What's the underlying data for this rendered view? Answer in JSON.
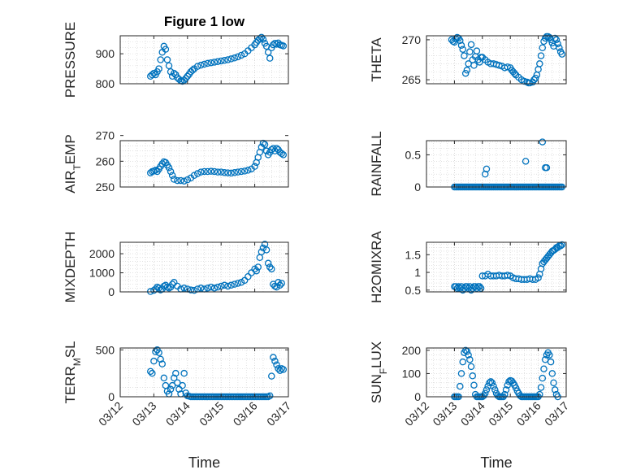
{
  "figure_title": "Figure 1 low",
  "colors": {
    "marker": "#0072BD",
    "axis": "#262626",
    "grid": "#cfcfcf"
  },
  "chart_data": [
    {
      "type": "scatter",
      "title": "Figure 1 low",
      "ylabel": "PRESSURE",
      "ylim": [
        800,
        960
      ],
      "yticks": [
        800,
        900
      ],
      "ytick_labels": [
        "800",
        "900"
      ],
      "x": [
        12.9,
        12.95,
        13.0,
        13.05,
        13.1,
        13.15,
        13.2,
        13.25,
        13.3,
        13.35,
        13.4,
        13.45,
        13.5,
        13.55,
        13.6,
        13.65,
        13.7,
        13.75,
        13.8,
        13.85,
        13.9,
        13.95,
        14.0,
        14.05,
        14.1,
        14.15,
        14.2,
        14.3,
        14.4,
        14.5,
        14.6,
        14.7,
        14.8,
        14.9,
        15.0,
        15.1,
        15.2,
        15.3,
        15.4,
        15.5,
        15.6,
        15.7,
        15.8,
        15.9,
        16.0,
        16.05,
        16.1,
        16.15,
        16.2,
        16.25,
        16.3,
        16.35,
        16.4,
        16.45,
        16.5,
        16.55,
        16.6,
        16.65,
        16.7,
        16.75,
        16.8,
        16.85
      ],
      "y": [
        825,
        830,
        835,
        830,
        840,
        850,
        880,
        905,
        925,
        915,
        880,
        860,
        840,
        825,
        835,
        830,
        820,
        815,
        810,
        808,
        812,
        818,
        825,
        832,
        840,
        845,
        850,
        858,
        862,
        865,
        868,
        870,
        872,
        874,
        876,
        878,
        880,
        883,
        886,
        890,
        895,
        900,
        910,
        920,
        930,
        938,
        945,
        950,
        955,
        948,
        935,
        925,
        905,
        885,
        920,
        930,
        935,
        932,
        936,
        930,
        928,
        926
      ]
    },
    {
      "type": "scatter",
      "ylabel": "THETA",
      "ylim": [
        264.5,
        270.5
      ],
      "yticks": [
        265,
        270
      ],
      "ytick_labels": [
        "265",
        "270"
      ],
      "x": [
        12.9,
        12.95,
        13.0,
        13.05,
        13.1,
        13.15,
        13.2,
        13.25,
        13.3,
        13.35,
        13.4,
        13.45,
        13.5,
        13.55,
        13.6,
        13.65,
        13.7,
        13.75,
        13.8,
        13.85,
        13.9,
        13.95,
        14.0,
        14.1,
        14.2,
        14.3,
        14.4,
        14.5,
        14.6,
        14.7,
        14.8,
        14.9,
        15.0,
        15.05,
        15.1,
        15.15,
        15.2,
        15.3,
        15.4,
        15.5,
        15.6,
        15.65,
        15.7,
        15.8,
        15.85,
        15.9,
        15.95,
        16.0,
        16.05,
        16.1,
        16.15,
        16.2,
        16.25,
        16.3,
        16.35,
        16.4,
        16.45,
        16.5,
        16.55,
        16.6,
        16.65,
        16.7,
        16.75,
        16.8,
        16.85
      ],
      "y": [
        270.0,
        269.8,
        269.7,
        270.1,
        270.3,
        270.2,
        269.9,
        269.3,
        268.8,
        268.0,
        265.8,
        266.2,
        267.0,
        268.5,
        269.4,
        267.5,
        266.8,
        267.9,
        268.6,
        267.5,
        267.2,
        267.8,
        267.8,
        267.5,
        267.2,
        267.0,
        267.0,
        266.9,
        266.8,
        266.7,
        266.5,
        266.6,
        266.5,
        266.2,
        266.0,
        265.8,
        265.6,
        265.3,
        265.0,
        264.8,
        264.7,
        264.6,
        264.6,
        264.7,
        265.0,
        265.2,
        265.6,
        266.3,
        267.0,
        268.0,
        269.0,
        269.8,
        270.2,
        270.4,
        270.4,
        270.3,
        270.0,
        269.6,
        269.2,
        270.2,
        270.0,
        269.5,
        269.0,
        268.5,
        268.2
      ]
    },
    {
      "type": "scatter",
      "ylabel": "AIR_TEMP",
      "ylim": [
        250,
        268
      ],
      "yticks": [
        250,
        260,
        270
      ],
      "ytick_labels": [
        "250",
        "260",
        "270"
      ],
      "x": [
        12.9,
        12.95,
        13.0,
        13.05,
        13.1,
        13.15,
        13.2,
        13.25,
        13.3,
        13.35,
        13.4,
        13.45,
        13.5,
        13.55,
        13.6,
        13.7,
        13.8,
        13.9,
        14.0,
        14.1,
        14.2,
        14.3,
        14.4,
        14.5,
        14.6,
        14.7,
        14.8,
        14.9,
        15.0,
        15.1,
        15.2,
        15.3,
        15.4,
        15.5,
        15.6,
        15.7,
        15.8,
        15.9,
        16.0,
        16.05,
        16.1,
        16.15,
        16.2,
        16.25,
        16.3,
        16.35,
        16.4,
        16.45,
        16.5,
        16.55,
        16.6,
        16.65,
        16.7,
        16.75,
        16.8,
        16.85
      ],
      "y": [
        255.5,
        256.0,
        256.2,
        256.5,
        256.0,
        257.0,
        258.0,
        259.0,
        259.8,
        259.5,
        258.5,
        257.5,
        256.0,
        254.5,
        253.0,
        252.5,
        252.5,
        252.3,
        252.8,
        253.5,
        254.5,
        255.2,
        255.8,
        256.0,
        256.0,
        256.1,
        256.0,
        255.8,
        255.8,
        255.6,
        255.5,
        255.4,
        255.6,
        255.8,
        256.0,
        256.2,
        256.5,
        257.0,
        258.0,
        259.5,
        261.5,
        263.5,
        265.5,
        267.0,
        266.5,
        264.0,
        262.5,
        263.5,
        264.5,
        265.0,
        264.0,
        265.0,
        264.5,
        263.5,
        263.0,
        262.5
      ]
    },
    {
      "type": "scatter",
      "ylabel": "RAINFALL",
      "ylim": [
        0,
        0.72
      ],
      "yticks": [
        0,
        0.5
      ],
      "ytick_labels": [
        "0",
        "0.5"
      ],
      "x": [
        13.0,
        13.05,
        13.1,
        13.15,
        13.2,
        13.25,
        13.3,
        13.35,
        13.4,
        13.45,
        13.5,
        13.55,
        13.6,
        13.65,
        13.7,
        13.75,
        13.8,
        13.85,
        13.9,
        13.95,
        14.0,
        14.05,
        14.1,
        14.15,
        14.2,
        14.25,
        14.3,
        14.35,
        14.4,
        14.45,
        14.5,
        14.55,
        14.6,
        14.65,
        14.7,
        14.75,
        14.8,
        14.85,
        14.9,
        14.95,
        15.0,
        15.05,
        15.1,
        15.15,
        15.2,
        15.25,
        15.3,
        15.35,
        15.4,
        15.45,
        15.5,
        15.55,
        15.6,
        15.65,
        15.7,
        15.75,
        15.8,
        15.85,
        15.9,
        15.95,
        16.0,
        16.05,
        16.1,
        16.15,
        16.2,
        16.25,
        16.3,
        16.35,
        16.4,
        16.45,
        16.5,
        16.55,
        16.6,
        16.65,
        16.7,
        16.75,
        16.8,
        16.85,
        14.1,
        14.15,
        15.55,
        16.15,
        16.25,
        16.3
      ],
      "y": [
        0,
        0,
        0,
        0,
        0,
        0,
        0,
        0,
        0,
        0,
        0,
        0,
        0,
        0,
        0,
        0,
        0,
        0,
        0,
        0,
        0,
        0,
        0,
        0,
        0,
        0,
        0,
        0,
        0,
        0,
        0,
        0,
        0,
        0,
        0,
        0,
        0,
        0,
        0,
        0,
        0,
        0,
        0,
        0,
        0,
        0,
        0,
        0,
        0,
        0,
        0,
        0,
        0,
        0,
        0,
        0,
        0,
        0,
        0,
        0,
        0,
        0,
        0,
        0,
        0,
        0,
        0,
        0,
        0,
        0,
        0,
        0,
        0,
        0,
        0,
        0,
        0,
        0,
        0.2,
        0.28,
        0.4,
        0.7,
        0.3,
        0.3
      ]
    },
    {
      "type": "scatter",
      "ylabel": "MIXDEPTH",
      "ylim": [
        0,
        2600
      ],
      "yticks": [
        0,
        1000,
        2000
      ],
      "ytick_labels": [
        "0",
        "1000",
        "2000"
      ],
      "x": [
        12.9,
        13.0,
        13.05,
        13.1,
        13.15,
        13.2,
        13.25,
        13.3,
        13.35,
        13.4,
        13.45,
        13.5,
        13.55,
        13.6,
        13.7,
        13.8,
        13.9,
        14.0,
        14.1,
        14.2,
        14.3,
        14.4,
        14.5,
        14.6,
        14.7,
        14.8,
        14.9,
        15.0,
        15.1,
        15.2,
        15.3,
        15.4,
        15.5,
        15.6,
        15.7,
        15.8,
        15.9,
        16.0,
        16.05,
        16.1,
        16.15,
        16.2,
        16.25,
        16.3,
        16.35,
        16.4,
        16.45,
        16.5,
        16.55,
        16.6,
        16.65,
        16.7,
        16.75,
        16.8
      ],
      "y": [
        20,
        80,
        150,
        250,
        200,
        100,
        150,
        300,
        350,
        250,
        200,
        250,
        400,
        500,
        300,
        150,
        200,
        150,
        100,
        80,
        150,
        200,
        150,
        200,
        250,
        200,
        250,
        300,
        350,
        300,
        350,
        400,
        450,
        500,
        600,
        800,
        1000,
        1200,
        1100,
        1300,
        1800,
        2100,
        2300,
        2500,
        2200,
        1500,
        1300,
        1200,
        400,
        300,
        250,
        500,
        350,
        450
      ]
    },
    {
      "type": "scatter",
      "ylabel": "H2OMIXRA",
      "ylim": [
        0.45,
        1.85
      ],
      "yticks": [
        0.5,
        1,
        1.5
      ],
      "ytick_labels": [
        "0.5",
        "1",
        "1.5"
      ],
      "x": [
        13.0,
        13.05,
        13.1,
        13.15,
        13.2,
        13.25,
        13.3,
        13.35,
        13.4,
        13.45,
        13.5,
        13.55,
        13.6,
        13.65,
        13.7,
        13.75,
        13.8,
        13.85,
        13.9,
        13.95,
        14.0,
        14.1,
        14.2,
        14.3,
        14.4,
        14.5,
        14.6,
        14.7,
        14.8,
        14.9,
        15.0,
        15.1,
        15.2,
        15.3,
        15.4,
        15.5,
        15.6,
        15.7,
        15.8,
        15.9,
        16.0,
        16.05,
        16.1,
        16.15,
        16.2,
        16.25,
        16.3,
        16.35,
        16.4,
        16.45,
        16.5,
        16.55,
        16.6,
        16.65,
        16.7,
        16.75,
        16.8,
        16.85
      ],
      "y": [
        0.6,
        0.6,
        0.55,
        0.6,
        0.55,
        0.6,
        0.5,
        0.55,
        0.6,
        0.6,
        0.55,
        0.6,
        0.5,
        0.55,
        0.6,
        0.6,
        0.55,
        0.6,
        0.6,
        0.55,
        0.9,
        0.9,
        0.95,
        0.9,
        0.9,
        0.9,
        0.92,
        0.9,
        0.9,
        0.92,
        0.9,
        0.85,
        0.82,
        0.82,
        0.8,
        0.8,
        0.8,
        0.82,
        0.8,
        0.8,
        0.85,
        0.95,
        1.1,
        1.25,
        1.3,
        1.35,
        1.4,
        1.45,
        1.5,
        1.55,
        1.6,
        1.62,
        1.65,
        1.7,
        1.7,
        1.75,
        1.75,
        1.78
      ]
    },
    {
      "type": "scatter",
      "ylabel": "TERR_MSL",
      "ylim": [
        0,
        520
      ],
      "yticks": [
        0,
        500
      ],
      "ytick_labels": [
        "0",
        "500"
      ],
      "x": [
        12.9,
        12.95,
        13.0,
        13.05,
        13.1,
        13.15,
        13.2,
        13.25,
        13.3,
        13.35,
        13.4,
        13.45,
        13.5,
        13.55,
        13.6,
        13.65,
        13.7,
        13.75,
        13.8,
        13.85,
        13.9,
        13.95,
        14.0,
        14.05,
        14.1,
        14.15,
        14.2,
        14.25,
        14.3,
        14.35,
        14.4,
        14.45,
        14.5,
        14.55,
        14.6,
        14.65,
        14.7,
        14.75,
        14.8,
        14.85,
        14.9,
        14.95,
        15.0,
        15.05,
        15.1,
        15.15,
        15.2,
        15.25,
        15.3,
        15.35,
        15.4,
        15.45,
        15.5,
        15.55,
        15.6,
        15.65,
        15.7,
        15.75,
        15.8,
        15.85,
        15.9,
        15.95,
        16.0,
        16.05,
        16.1,
        16.15,
        16.2,
        16.25,
        16.3,
        16.35,
        16.4,
        16.45,
        16.5,
        16.55,
        16.6,
        16.65,
        16.7,
        16.75,
        16.8,
        16.85
      ],
      "y": [
        270,
        250,
        380,
        480,
        500,
        470,
        400,
        350,
        200,
        120,
        60,
        30,
        80,
        120,
        200,
        250,
        150,
        80,
        30,
        120,
        250,
        40,
        10,
        5,
        0,
        0,
        0,
        0,
        0,
        0,
        0,
        0,
        0,
        0,
        0,
        0,
        0,
        0,
        0,
        0,
        0,
        0,
        0,
        0,
        0,
        0,
        0,
        0,
        0,
        0,
        0,
        0,
        0,
        0,
        0,
        0,
        0,
        0,
        0,
        0,
        0,
        0,
        0,
        0,
        0,
        0,
        0,
        0,
        0,
        0,
        0,
        10,
        220,
        420,
        380,
        340,
        300,
        280,
        300,
        290
      ]
    },
    {
      "type": "scatter",
      "ylabel": "SUN_FLUX",
      "ylim": [
        0,
        210
      ],
      "yticks": [
        0,
        100,
        200
      ],
      "ytick_labels": [
        "0",
        "100",
        "200"
      ],
      "x": [
        13.0,
        13.05,
        13.1,
        13.15,
        13.2,
        13.25,
        13.3,
        13.35,
        13.4,
        13.45,
        13.5,
        13.55,
        13.6,
        13.65,
        13.7,
        13.75,
        13.8,
        13.85,
        13.9,
        13.95,
        14.0,
        14.05,
        14.1,
        14.15,
        14.2,
        14.25,
        14.3,
        14.35,
        14.4,
        14.45,
        14.5,
        14.55,
        14.6,
        14.65,
        14.7,
        14.75,
        14.8,
        14.85,
        14.9,
        14.95,
        15.0,
        15.05,
        15.1,
        15.15,
        15.2,
        15.25,
        15.3,
        15.35,
        15.4,
        15.45,
        15.5,
        15.55,
        15.6,
        15.65,
        15.7,
        15.75,
        15.8,
        15.85,
        15.9,
        15.95,
        16.0,
        16.05,
        16.1,
        16.15,
        16.2,
        16.25,
        16.3,
        16.35,
        16.4,
        16.45,
        16.5,
        16.55,
        16.6,
        16.65,
        16.7
      ],
      "y": [
        0,
        0,
        0,
        0,
        45,
        100,
        150,
        190,
        200,
        195,
        180,
        160,
        130,
        90,
        50,
        10,
        0,
        0,
        0,
        0,
        0,
        5,
        15,
        30,
        45,
        60,
        65,
        60,
        45,
        30,
        15,
        5,
        0,
        0,
        0,
        0,
        10,
        30,
        50,
        65,
        70,
        68,
        60,
        50,
        38,
        25,
        15,
        5,
        0,
        0,
        0,
        0,
        0,
        0,
        0,
        0,
        0,
        0,
        0,
        0,
        0,
        10,
        40,
        80,
        120,
        160,
        180,
        190,
        180,
        150,
        100,
        60,
        30,
        10,
        0
      ]
    }
  ],
  "x_axis": {
    "xlim": [
      12,
      17
    ],
    "ticks": [
      12,
      13,
      14,
      15,
      16,
      17
    ],
    "tick_labels": [
      "03/12",
      "03/13",
      "03/14",
      "03/15",
      "03/16",
      "03/17"
    ],
    "label": "Time"
  }
}
